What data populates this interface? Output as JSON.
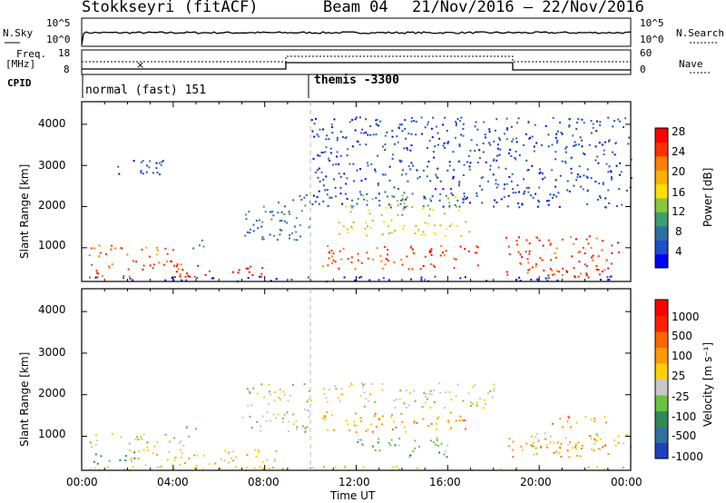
{
  "header": {
    "radar": "Stokkseyri (fitACF)",
    "beam": "Beam 04",
    "dates": "21/Nov/2016 – 22/Nov/2016"
  },
  "status_panel": {
    "nsky_label": "N.Sky",
    "nsearch_label": "N.Search",
    "nsky_ticks": [
      "10^5",
      "10^0"
    ],
    "nsearch_ticks": [
      "10^5",
      "10^0"
    ],
    "freq_label": "Freq.",
    "freq_unit": "[MHz]",
    "freq_ticks": [
      "18",
      "8"
    ],
    "nave_label": "Nave",
    "nave_ticks": [
      "60",
      "0"
    ],
    "cpid_label": "CPID",
    "cpid_entries": [
      {
        "name": "normal (fast) 151",
        "start_hour": 0
      },
      {
        "name": "themis -3300",
        "start_hour": 10
      }
    ]
  },
  "chart_data": [
    {
      "type": "heatmap",
      "panel": "power",
      "xlabel": "",
      "ylabel": "Slant Range [km]",
      "xlim": [
        0,
        24
      ],
      "ylim": [
        180,
        4550
      ],
      "yticks": [
        "4000",
        "3000",
        "2000",
        "1000"
      ],
      "colorbar_label": "Power [dB]",
      "colorbar_ticks": [
        "28",
        "24",
        "20",
        "16",
        "12",
        "8",
        "4"
      ],
      "colors": [
        "#0000ff",
        "#1e50c8",
        "#2f6fa0",
        "#3f9d6e",
        "#8cc63f",
        "#ffe000",
        "#ffb000",
        "#ff7f00",
        "#ff3000",
        "#ff0000"
      ],
      "regions": [
        {
          "x0": 0.3,
          "x1": 4.5,
          "y0": 300,
          "y1": 700,
          "c": 8
        },
        {
          "x0": 0.3,
          "x1": 4.5,
          "y0": 800,
          "y1": 1100,
          "c": 7
        },
        {
          "x0": 4.0,
          "x1": 8.0,
          "y0": 300,
          "y1": 600,
          "c": 9
        },
        {
          "x0": 4.5,
          "x1": 5.3,
          "y0": 1000,
          "y1": 1250,
          "c": 3
        },
        {
          "x0": 1.5,
          "x1": 3.8,
          "y0": 2700,
          "y1": 3200,
          "c": 1
        },
        {
          "x0": 7.0,
          "x1": 10.0,
          "y0": 1200,
          "y1": 2300,
          "c": 2
        },
        {
          "x0": 10.5,
          "x1": 17.5,
          "y0": 500,
          "y1": 1100,
          "c": 8
        },
        {
          "x0": 11.0,
          "x1": 17.0,
          "y0": 1300,
          "y1": 1700,
          "c": 5
        },
        {
          "x0": 11.5,
          "x1": 16.5,
          "y0": 1800,
          "y1": 2300,
          "c": 4
        },
        {
          "x0": 18.5,
          "x1": 23.5,
          "y0": 300,
          "y1": 1300,
          "c": 8
        },
        {
          "x0": 20.0,
          "x1": 22.0,
          "y0": 300,
          "y1": 500,
          "c": 9
        },
        {
          "x0": 0.3,
          "x1": 24.0,
          "y0": 200,
          "y1": 320,
          "c": 0
        },
        {
          "x0": 10.0,
          "x1": 24.0,
          "y0": 2000,
          "y1": 4200,
          "c": 1
        }
      ]
    },
    {
      "type": "heatmap",
      "panel": "velocity",
      "xlabel": "Time UT",
      "ylabel": "Slant Range [km]",
      "xlim": [
        0,
        24
      ],
      "ylim": [
        180,
        4550
      ],
      "xticks": [
        "00:00",
        "04:00",
        "08:00",
        "12:00",
        "16:00",
        "20:00",
        "00:00"
      ],
      "yticks": [
        "4000",
        "3000",
        "2000",
        "1000"
      ],
      "colorbar_label": "Velocity [m s⁻¹]",
      "colorbar_ticks": [
        "1000",
        "500",
        "100",
        "25",
        "-25",
        "-100",
        "-500",
        "-1000"
      ],
      "colors": [
        "#2040c0",
        "#3070a0",
        "#2e8b57",
        "#6cc040",
        "#c8c8c8",
        "#ffd000",
        "#ff9900",
        "#ff6600",
        "#ff2000",
        "#ff0000"
      ],
      "regions": [
        {
          "x0": 0.3,
          "x1": 4.5,
          "y0": 750,
          "y1": 1100,
          "c": 4
        },
        {
          "x0": 0.4,
          "x1": 2.3,
          "y0": 350,
          "y1": 650,
          "c": 2
        },
        {
          "x0": 2.0,
          "x1": 8.5,
          "y0": 300,
          "y1": 700,
          "c": 5
        },
        {
          "x0": 4.5,
          "x1": 5.3,
          "y0": 1000,
          "y1": 1300,
          "c": 3
        },
        {
          "x0": 7.0,
          "x1": 10.0,
          "y0": 1100,
          "y1": 2300,
          "c": 4
        },
        {
          "x0": 10.5,
          "x1": 18.0,
          "y0": 1700,
          "y1": 2300,
          "c": 4
        },
        {
          "x0": 10.5,
          "x1": 17.0,
          "y0": 1100,
          "y1": 1600,
          "c": 6
        },
        {
          "x0": 12.0,
          "x1": 16.0,
          "y0": 500,
          "y1": 1000,
          "c": 3
        },
        {
          "x0": 18.5,
          "x1": 23.5,
          "y0": 500,
          "y1": 1000,
          "c": 6
        },
        {
          "x0": 19.5,
          "x1": 24.0,
          "y0": 700,
          "y1": 1100,
          "c": 4
        },
        {
          "x0": 20.5,
          "x1": 23.0,
          "y0": 1200,
          "y1": 1500,
          "c": 6
        },
        {
          "x0": 0.3,
          "x1": 24.0,
          "y0": 200,
          "y1": 300,
          "c": 5
        }
      ]
    }
  ]
}
